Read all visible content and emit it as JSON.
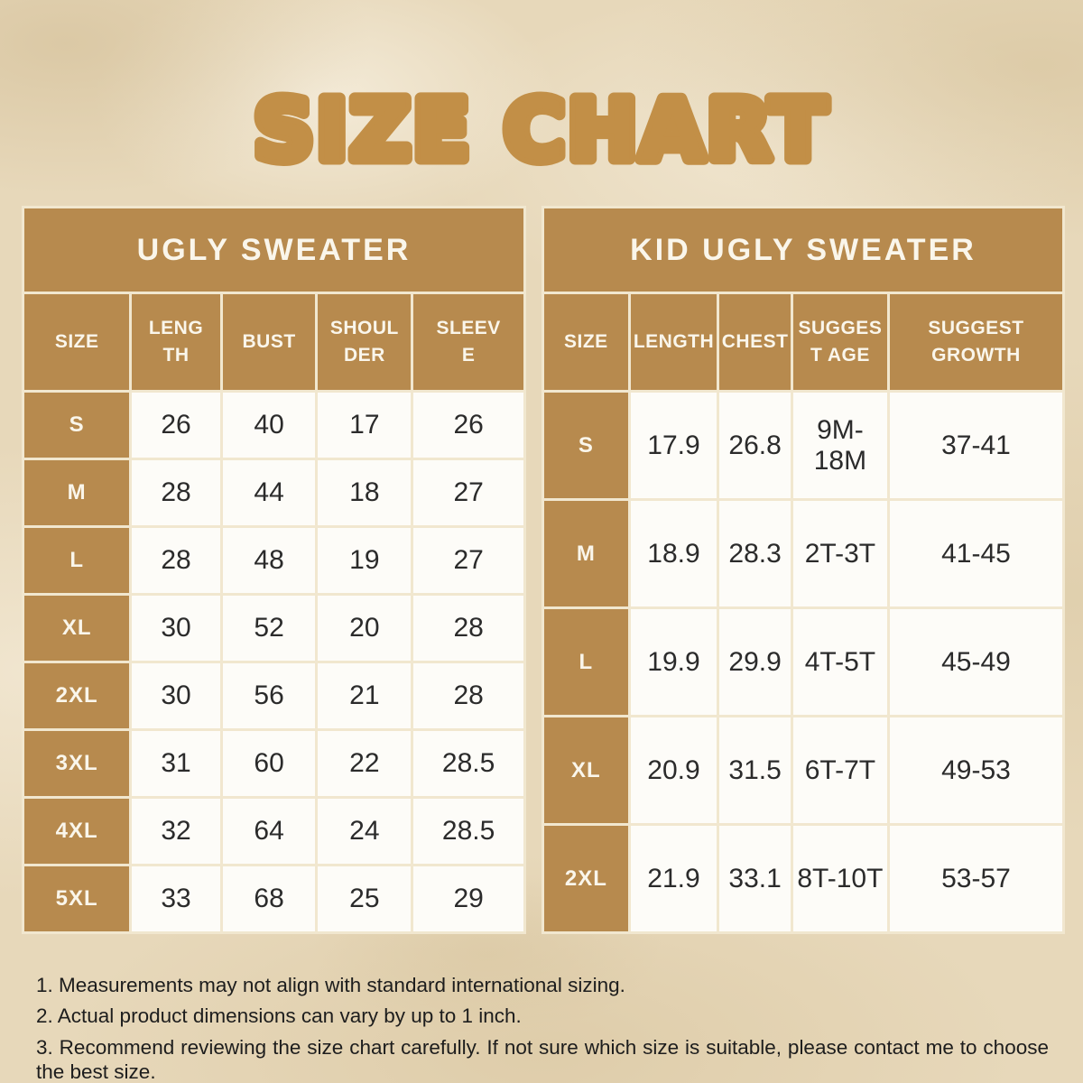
{
  "title": "SIZE CHART",
  "colors": {
    "background": "#e7d8ba",
    "accent_gold": "#b78a4e",
    "title_gold": "#c28f47",
    "separator_cream": "#f1e7cf",
    "cell_white": "#fdfcf8",
    "text_dark": "#2b2b2b",
    "text_light": "#faf6eb"
  },
  "tables": [
    {
      "title": "UGLY SWEATER",
      "columns": [
        "SIZE",
        "LENG\nTH",
        "BUST",
        "SHOUL\nDER",
        "SLEEV\nE"
      ],
      "rows": [
        {
          "size": "S",
          "values": [
            "26",
            "40",
            "17",
            "26"
          ]
        },
        {
          "size": "M",
          "values": [
            "28",
            "44",
            "18",
            "27"
          ]
        },
        {
          "size": "L",
          "values": [
            "28",
            "48",
            "19",
            "27"
          ]
        },
        {
          "size": "XL",
          "values": [
            "30",
            "52",
            "20",
            "28"
          ]
        },
        {
          "size": "2XL",
          "values": [
            "30",
            "56",
            "21",
            "28"
          ]
        },
        {
          "size": "3XL",
          "values": [
            "31",
            "60",
            "22",
            "28.5"
          ]
        },
        {
          "size": "4XL",
          "values": [
            "32",
            "64",
            "24",
            "28.5"
          ]
        },
        {
          "size": "5XL",
          "values": [
            "33",
            "68",
            "25",
            "29"
          ]
        }
      ]
    },
    {
      "title": "KID UGLY SWEATER",
      "columns": [
        "SIZE",
        "LENGTH",
        "CHEST",
        "SUGGES\nT AGE",
        "SUGGEST\nGROWTH"
      ],
      "rows": [
        {
          "size": "S",
          "values": [
            "17.9",
            "26.8",
            "9M-18M",
            "37-41"
          ]
        },
        {
          "size": "M",
          "values": [
            "18.9",
            "28.3",
            "2T-3T",
            "41-45"
          ]
        },
        {
          "size": "L",
          "values": [
            "19.9",
            "29.9",
            "4T-5T",
            "45-49"
          ]
        },
        {
          "size": "XL",
          "values": [
            "20.9",
            "31.5",
            "6T-7T",
            "49-53"
          ]
        },
        {
          "size": "2XL",
          "values": [
            "21.9",
            "33.1",
            "8T-10T",
            "53-57"
          ]
        }
      ]
    }
  ],
  "notes": [
    "1. Measurements may not align with standard international sizing.",
    "2. Actual product dimensions can vary by up to 1 inch.",
    "3. Recommend reviewing the size chart carefully. If not sure which size is suitable, please contact me to choose the best size."
  ]
}
